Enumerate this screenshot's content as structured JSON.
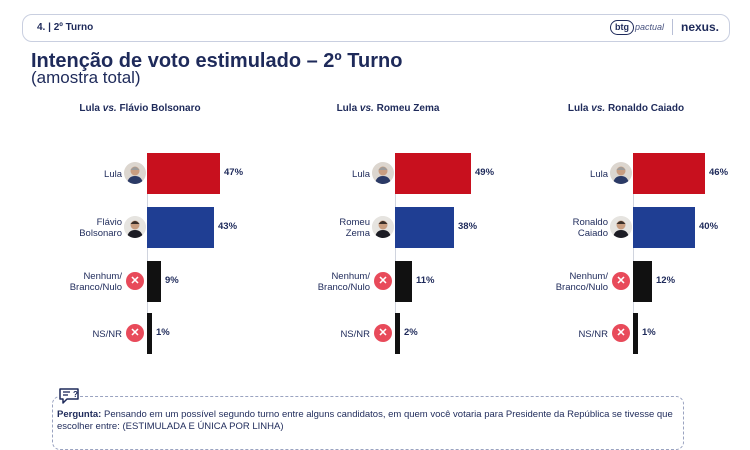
{
  "header": {
    "slide_id": "4. | 2º Turno",
    "logo_btg_mark": "btg",
    "logo_btg_rest": "pactual",
    "logo_nexus": "nexus."
  },
  "page": {
    "title": "Intenção de voto estimulado – 2º Turno",
    "subtitle": "(amostra total)"
  },
  "colors": {
    "lula": "#c8101e",
    "opponent": "#1f3e93",
    "nenhum": "#111111",
    "nsnr": "#111111",
    "x_icon": "#e84a5a"
  },
  "chart_data": [
    {
      "type": "bar",
      "orientation": "horizontal",
      "title_a": "Lula",
      "title_vs": "vs.",
      "title_b": "Flávio Bolsonaro",
      "categories": [
        "Lula",
        "Flávio Bolsonaro",
        "Nenhum/ Branco/Nulo",
        "NS/NR"
      ],
      "values": [
        47,
        43,
        9,
        1
      ],
      "value_labels": [
        "47%",
        "43%",
        "9%",
        "1%"
      ],
      "label_lines": [
        [
          "Lula"
        ],
        [
          "Flávio",
          "Bolsonaro"
        ],
        [
          "Nenhum/",
          "Branco/Nulo"
        ],
        [
          "NS/NR"
        ]
      ],
      "unit": "%"
    },
    {
      "type": "bar",
      "orientation": "horizontal",
      "title_a": "Lula",
      "title_vs": "vs.",
      "title_b": "Romeu Zema",
      "categories": [
        "Lula",
        "Romeu Zema",
        "Nenhum/ Branco/Nulo",
        "NS/NR"
      ],
      "values": [
        49,
        38,
        11,
        2
      ],
      "value_labels": [
        "49%",
        "38%",
        "11%",
        "2%"
      ],
      "label_lines": [
        [
          "Lula"
        ],
        [
          "Romeu",
          "Zema"
        ],
        [
          "Nenhum/",
          "Branco/Nulo"
        ],
        [
          "NS/NR"
        ]
      ],
      "unit": "%"
    },
    {
      "type": "bar",
      "orientation": "horizontal",
      "title_a": "Lula",
      "title_vs": "vs.",
      "title_b": "Ronaldo Caiado",
      "categories": [
        "Lula",
        "Ronaldo Caiado",
        "Nenhum/ Branco/Nulo",
        "NS/NR"
      ],
      "values": [
        46,
        40,
        12,
        1
      ],
      "value_labels": [
        "46%",
        "40%",
        "12%",
        "1%"
      ],
      "label_lines": [
        [
          "Lula"
        ],
        [
          "Ronaldo",
          "Caiado"
        ],
        [
          "Nenhum/",
          "Branco/Nulo"
        ],
        [
          "NS/NR"
        ]
      ],
      "unit": "%"
    }
  ],
  "question": {
    "prefix": "Pergunta:",
    "text": " Pensando em um possível segundo turno entre alguns candidatos, em quem você votaria para Presidente da República se tivesse que escolher entre: (ESTIMULADA E ÚNICA POR LINHA)"
  },
  "icons": {
    "question": "speech-bubble-question-icon",
    "candidate": "candidate-photo-icon",
    "none": "x-circle-icon"
  }
}
